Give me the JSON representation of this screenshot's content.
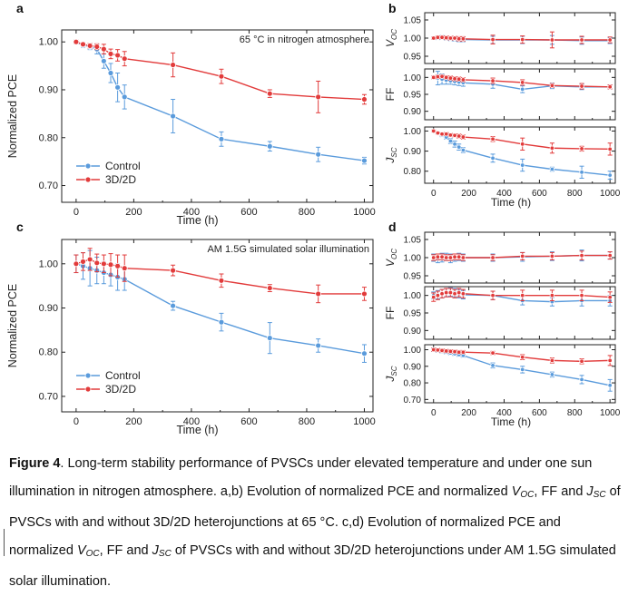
{
  "colors": {
    "control": "#5a9bdc",
    "heterojunction": "#e23b3b",
    "axis": "#222222"
  },
  "chart_data": [
    {
      "panel": "a",
      "type": "line",
      "annotation": "65 °C in nitrogen atmosphere",
      "xlabel": "Time (h)",
      "ylabel": "Normalized PCE",
      "xlim": [
        -50,
        1030
      ],
      "ylim": [
        0.665,
        1.025
      ],
      "xticks": [
        0,
        200,
        400,
        600,
        800,
        1000
      ],
      "yticks": [
        0.7,
        0.8,
        0.9,
        1.0
      ],
      "ytick_decimals": 2,
      "legend_position": "bottom-left",
      "series": [
        {
          "name": "Control",
          "color": "#5a9bdc",
          "x": [
            0,
            24,
            48,
            72,
            96,
            120,
            144,
            168,
            336,
            504,
            672,
            840,
            1000
          ],
          "y": [
            1.0,
            0.993,
            0.99,
            0.985,
            0.96,
            0.935,
            0.905,
            0.885,
            0.845,
            0.797,
            0.782,
            0.765,
            0.752
          ],
          "err": [
            0.004,
            0.005,
            0.006,
            0.01,
            0.015,
            0.02,
            0.03,
            0.025,
            0.035,
            0.015,
            0.01,
            0.015,
            0.007
          ]
        },
        {
          "name": "3D/2D",
          "color": "#e23b3b",
          "x": [
            0,
            24,
            48,
            72,
            96,
            120,
            144,
            168,
            336,
            504,
            672,
            840,
            1000
          ],
          "y": [
            1.0,
            0.995,
            0.992,
            0.99,
            0.985,
            0.975,
            0.972,
            0.965,
            0.952,
            0.928,
            0.892,
            0.885,
            0.88
          ],
          "err": [
            0.004,
            0.004,
            0.005,
            0.006,
            0.01,
            0.01,
            0.012,
            0.015,
            0.025,
            0.015,
            0.008,
            0.033,
            0.01
          ]
        }
      ]
    },
    {
      "panel": "b",
      "type": "line",
      "xlabel": "Time (h)",
      "xlim": [
        -50,
        1030
      ],
      "xticks": [
        0,
        200,
        400,
        600,
        800,
        1000
      ],
      "subplots": [
        {
          "ylabel": "VOC",
          "ylim": [
            0.93,
            1.07
          ],
          "yticks": [
            0.95,
            1.0,
            1.05
          ],
          "series": [
            {
              "name": "Control",
              "color": "#5a9bdc",
              "x": [
                0,
                24,
                48,
                72,
                96,
                120,
                144,
                168,
                336,
                504,
                672,
                840,
                1000
              ],
              "y": [
                1.0,
                1.0,
                1.002,
                1.0,
                0.998,
                0.998,
                0.996,
                0.996,
                0.995,
                0.995,
                0.995,
                0.993,
                0.993
              ],
              "err": [
                0.003,
                0.004,
                0.005,
                0.005,
                0.005,
                0.006,
                0.006,
                0.006,
                0.01,
                0.01,
                0.012,
                0.01,
                0.008
              ]
            },
            {
              "name": "3D/2D",
              "color": "#e23b3b",
              "x": [
                0,
                24,
                48,
                72,
                96,
                120,
                144,
                168,
                336,
                504,
                672,
                840,
                1000
              ],
              "y": [
                1.0,
                1.002,
                1.002,
                1.001,
                1.0,
                1.0,
                0.998,
                0.998,
                0.996,
                0.996,
                0.995,
                0.995,
                0.995
              ],
              "err": [
                0.003,
                0.004,
                0.004,
                0.005,
                0.005,
                0.005,
                0.006,
                0.006,
                0.012,
                0.01,
                0.022,
                0.01,
                0.008
              ]
            }
          ]
        },
        {
          "ylabel": "FF",
          "ylim": [
            0.875,
            1.025
          ],
          "yticks": [
            0.9,
            0.95,
            1.0
          ],
          "series": [
            {
              "name": "Control",
              "color": "#5a9bdc",
              "x": [
                0,
                24,
                48,
                72,
                96,
                120,
                144,
                168,
                336,
                504,
                672,
                840,
                1000
              ],
              "y": [
                1.0,
                0.998,
                0.995,
                0.992,
                0.99,
                0.988,
                0.986,
                0.984,
                0.98,
                0.965,
                0.975,
                0.972,
                0.972
              ],
              "err": [
                0.004,
                0.02,
                0.015,
                0.012,
                0.01,
                0.01,
                0.01,
                0.01,
                0.012,
                0.01,
                0.008,
                0.008,
                0.006
              ]
            },
            {
              "name": "3D/2D",
              "color": "#e23b3b",
              "x": [
                0,
                24,
                48,
                72,
                96,
                120,
                144,
                168,
                336,
                504,
                672,
                840,
                1000
              ],
              "y": [
                1.0,
                1.002,
                1.003,
                1.0,
                0.998,
                0.996,
                0.995,
                0.993,
                0.99,
                0.985,
                0.976,
                0.974,
                0.972
              ],
              "err": [
                0.004,
                0.005,
                0.005,
                0.005,
                0.006,
                0.006,
                0.006,
                0.006,
                0.008,
                0.008,
                0.006,
                0.008,
                0.006
              ]
            }
          ]
        },
        {
          "ylabel": "JSC",
          "ylim": [
            0.74,
            1.02
          ],
          "yticks": [
            0.8,
            0.9,
            1.0
          ],
          "series": [
            {
              "name": "Control",
              "color": "#5a9bdc",
              "x": [
                0,
                24,
                48,
                72,
                96,
                120,
                144,
                168,
                336,
                504,
                672,
                840,
                1000
              ],
              "y": [
                1.0,
                0.99,
                0.98,
                0.97,
                0.95,
                0.935,
                0.92,
                0.905,
                0.865,
                0.83,
                0.81,
                0.795,
                0.78
              ],
              "err": [
                0.005,
                0.005,
                0.008,
                0.01,
                0.012,
                0.015,
                0.015,
                0.012,
                0.02,
                0.03,
                0.01,
                0.03,
                0.02
              ]
            },
            {
              "name": "3D/2D",
              "color": "#e23b3b",
              "x": [
                0,
                24,
                48,
                72,
                96,
                120,
                144,
                168,
                336,
                504,
                672,
                840,
                1000
              ],
              "y": [
                1.0,
                0.99,
                0.985,
                0.985,
                0.98,
                0.978,
                0.975,
                0.97,
                0.96,
                0.935,
                0.915,
                0.912,
                0.91
              ],
              "err": [
                0.005,
                0.005,
                0.006,
                0.008,
                0.008,
                0.008,
                0.01,
                0.01,
                0.012,
                0.03,
                0.025,
                0.012,
                0.03
              ]
            }
          ]
        }
      ]
    },
    {
      "panel": "c",
      "type": "line",
      "annotation": "AM 1.5G simulated solar illumination",
      "xlabel": "Time (h)",
      "ylabel": "Normalized PCE",
      "xlim": [
        -50,
        1030
      ],
      "ylim": [
        0.665,
        1.055
      ],
      "xticks": [
        0,
        200,
        400,
        600,
        800,
        1000
      ],
      "yticks": [
        0.7,
        0.8,
        0.9,
        1.0
      ],
      "ytick_decimals": 2,
      "legend_position": "bottom-left",
      "series": [
        {
          "name": "Control",
          "color": "#5a9bdc",
          "x": [
            0,
            24,
            48,
            72,
            96,
            120,
            144,
            168,
            336,
            504,
            672,
            840,
            1000
          ],
          "y": [
            1.0,
            0.995,
            0.99,
            0.985,
            0.98,
            0.975,
            0.97,
            0.965,
            0.905,
            0.868,
            0.832,
            0.815,
            0.797
          ],
          "err": [
            0.02,
            0.03,
            0.04,
            0.03,
            0.025,
            0.025,
            0.03,
            0.025,
            0.01,
            0.02,
            0.035,
            0.015,
            0.02
          ]
        },
        {
          "name": "3D/2D",
          "color": "#e23b3b",
          "x": [
            0,
            24,
            48,
            72,
            96,
            120,
            144,
            168,
            336,
            504,
            672,
            840,
            1000
          ],
          "y": [
            1.0,
            1.005,
            1.01,
            1.002,
            1.0,
            0.998,
            0.995,
            0.99,
            0.985,
            0.962,
            0.945,
            0.932,
            0.932
          ],
          "err": [
            0.02,
            0.02,
            0.025,
            0.02,
            0.02,
            0.025,
            0.025,
            0.03,
            0.012,
            0.015,
            0.008,
            0.02,
            0.015
          ]
        }
      ]
    },
    {
      "panel": "d",
      "type": "line",
      "xlabel": "Time (h)",
      "xlim": [
        -50,
        1030
      ],
      "xticks": [
        0,
        200,
        400,
        600,
        800,
        1000
      ],
      "subplots": [
        {
          "ylabel": "VOC",
          "ylim": [
            0.93,
            1.07
          ],
          "yticks": [
            0.95,
            1.0,
            1.05
          ],
          "series": [
            {
              "name": "Control",
              "color": "#5a9bdc",
              "x": [
                0,
                24,
                48,
                72,
                96,
                120,
                144,
                168,
                336,
                504,
                672,
                840,
                1000
              ],
              "y": [
                1.0,
                0.998,
                1.0,
                1.002,
                0.998,
                1.0,
                1.002,
                1.0,
                1.0,
                1.002,
                1.004,
                1.006,
                1.006
              ],
              "err": [
                0.01,
                0.012,
                0.012,
                0.01,
                0.012,
                0.01,
                0.01,
                0.01,
                0.01,
                0.012,
                0.012,
                0.015,
                0.01
              ]
            },
            {
              "name": "3D/2D",
              "color": "#e23b3b",
              "x": [
                0,
                24,
                48,
                72,
                96,
                120,
                144,
                168,
                336,
                504,
                672,
                840,
                1000
              ],
              "y": [
                1.0,
                1.002,
                1.002,
                1.0,
                1.0,
                1.002,
                1.002,
                1.0,
                1.0,
                1.004,
                1.004,
                1.006,
                1.006
              ],
              "err": [
                0.008,
                0.008,
                0.008,
                0.008,
                0.008,
                0.008,
                0.008,
                0.008,
                0.008,
                0.01,
                0.01,
                0.012,
                0.01
              ]
            }
          ]
        },
        {
          "ylabel": "FF",
          "ylim": [
            0.875,
            1.025
          ],
          "yticks": [
            0.9,
            0.95,
            1.0
          ],
          "series": [
            {
              "name": "Control",
              "color": "#5a9bdc",
              "x": [
                0,
                24,
                48,
                72,
                96,
                120,
                144,
                168,
                336,
                504,
                672,
                840,
                1000
              ],
              "y": [
                1.0,
                1.002,
                1.005,
                1.008,
                1.01,
                1.008,
                1.005,
                1.002,
                1.0,
                0.985,
                0.982,
                0.985,
                0.985
              ],
              "err": [
                0.01,
                0.012,
                0.012,
                0.012,
                0.012,
                0.012,
                0.012,
                0.012,
                0.012,
                0.012,
                0.012,
                0.015,
                0.015
              ]
            },
            {
              "name": "3D/2D",
              "color": "#e23b3b",
              "x": [
                0,
                24,
                48,
                72,
                96,
                120,
                144,
                168,
                336,
                504,
                672,
                840,
                1000
              ],
              "y": [
                0.995,
                1.0,
                1.005,
                1.008,
                1.008,
                1.005,
                1.008,
                1.005,
                1.0,
                1.0,
                1.0,
                1.0,
                0.995
              ],
              "err": [
                0.012,
                0.012,
                0.012,
                0.012,
                0.012,
                0.012,
                0.012,
                0.012,
                0.012,
                0.015,
                0.015,
                0.015,
                0.015
              ]
            }
          ]
        },
        {
          "ylabel": "JSC",
          "ylim": [
            0.68,
            1.03
          ],
          "yticks": [
            0.7,
            0.8,
            0.9,
            1.0
          ],
          "series": [
            {
              "name": "Control",
              "color": "#5a9bdc",
              "x": [
                0,
                24,
                48,
                72,
                96,
                120,
                144,
                168,
                336,
                504,
                672,
                840,
                1000
              ],
              "y": [
                1.0,
                0.995,
                0.99,
                0.985,
                0.98,
                0.975,
                0.97,
                0.965,
                0.905,
                0.88,
                0.85,
                0.82,
                0.785
              ],
              "err": [
                0.01,
                0.01,
                0.01,
                0.01,
                0.01,
                0.01,
                0.01,
                0.01,
                0.015,
                0.02,
                0.015,
                0.025,
                0.035
              ]
            },
            {
              "name": "3D/2D",
              "color": "#e23b3b",
              "x": [
                0,
                24,
                48,
                72,
                96,
                120,
                144,
                168,
                336,
                504,
                672,
                840,
                1000
              ],
              "y": [
                1.0,
                0.998,
                0.995,
                0.992,
                0.99,
                0.988,
                0.985,
                0.985,
                0.98,
                0.955,
                0.935,
                0.93,
                0.935
              ],
              "err": [
                0.01,
                0.01,
                0.01,
                0.01,
                0.01,
                0.01,
                0.01,
                0.01,
                0.01,
                0.015,
                0.015,
                0.015,
                0.03
              ]
            }
          ]
        }
      ]
    }
  ],
  "caption": {
    "label": "Figure 4",
    "text_1": ". Long-term stability performance of PVSCs under elevated temperature and under one sun illumination in nitrogen atmosphere. a,b) Evolution of normalized PCE and normalized ",
    "v": "V",
    "oc": "OC",
    "text_2": ", FF and ",
    "j": "J",
    "sc": "SC",
    "text_3": " of PVSCs with and without 3D/2D heterojunctions at 65 °C. c,d) Evolution of normalized PCE and normalized ",
    "text_4": ", FF and ",
    "text_5": " of PVSCs with and without 3D/2D heterojunctions under AM 1.5G simulated solar illumination."
  }
}
